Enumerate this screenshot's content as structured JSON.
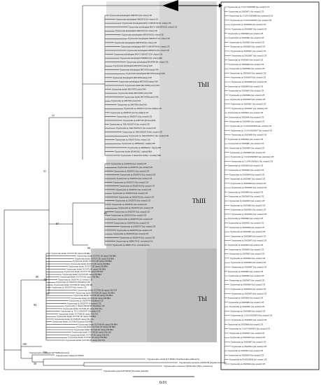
{
  "clades": {
    "thii": "ThII",
    "thiii": "ThIII",
    "thi": "ThI"
  },
  "support_values": [
    "77",
    "51",
    "67",
    "65",
    "99",
    "90",
    "84",
    "100",
    "100",
    "50",
    "94"
  ],
  "outgroup_leaves": [
    "Trypanosoma cf. rangeli KF766864 (Lizard)",
    "Trypanosoma ralphi AF178091",
    "Trypanosoma avium KT728402 (Xanthostomus silhouetti)",
    "Trypanosoma terrestris AJ009158 (Tapirus terrestris)",
    "Trypanosoma constrictor MN412421 (Boa constrictor)",
    "Trypanosoma grayi KF546526 (Glossina palpalis)"
  ],
  "expanded_leaves": [
    "Trypanosoma sp. CS1157 OM256663 (An. sexauri) CZE",
    "Trypanosoma sp. OM256671 (An. sexauri) CZE",
    "Trypanosoma sp. CS1195 OM256686 (An. pyrrhonea) CZE",
    "Trypanosoma sp. CS1203 OM256675 (An. sexauri) CZE",
    "Trypanosoma sp. OM256626 (An. sexauri) CZE",
    "Trypanosoma sp. OM256665 (An. sexauri) CZE",
    "Trypanosoma sp. OM256640 (An. sexauri) CZE",
    "Trypanosoma sp. OM256691 (An. sexauri) CZE",
    "Trypanosoma sp. OM256653 (An. sexauri) CZE",
    "Trypanosoma sp. OM256620 (An. sexauri) CZE",
    "Trypanosoma sp. OM256651 (An. sexauri) CZE",
    "Trypanosoma sp. OM256637 (An. sexauri) CZE",
    "Trypanosoma sp. OM256634 (An. sexauri) CZE",
    "Trypanosoma sp. OM256649 (An. sexauri) CZE",
    "Trypanosoma sp. OM256662 (An. sexauri) CZE",
    "Trypanosoma sp. OM256628 (An. annulata) CZE",
    "Trypanosoma sp. OM256678 (An. sexauri) CZE",
    "Trypanosoma sp. OM256669 (An. sexauri) CZE",
    "Trypanosoma sp. OM256648 (An. sexauri) CZE",
    "Trypanosoma sp. OM256633 (An. sexauri) CZE",
    "Trypanosoma sp. OM256664 (An. sexauri) CZE",
    "Trypanosoma sp. OM256639 (An. sexauri) CZE",
    "Trypanosoma sp. OM256627 (An. sexauri) CZE",
    "Trypanosoma sp. OM256657 (An. annulata) CZE",
    "Trypanosoma sp. OM256621 (An. sexauri) CZE",
    "Trypanosoma sp. OM256643 (An. sexauri) CZE",
    "Trypanosoma sp. OM256685 (An. sexauri) CZE",
    "Trypanosoma sp. CS1149 OM256618 (An. sexauri) CZE",
    "Trypanosoma sp. CS1159 OM256617 (An. sexauri) CZE",
    "Trypanosoma sp. OM256684 (An. sexauri) CZE",
    "Trypanosoma sp. OM256622 (An. sexauri) CZE",
    "Trypanosoma sp. OM256661 (An. sexauri) CZE",
    "Trypanosoma sp. OM256642 (An. sexauri) CZE",
    "Trypanosoma sp. OM256656 (An. sexauri) CZE",
    "Trypanosoma sp. CS1148 OM256613 (An. punctatus) CZE",
    "Trypanosoma sp. CS1149 OM256612 (An. sexauri) CZE",
    "Trypanosoma sp. OM256629 (An. sexauri) CZE",
    "Trypanosoma sp. OM256644 (An. sexauri) CZE",
    "Trypanosoma sp. OM256638 (An. sexauri) CZE",
    "Trypanosoma sp. OM256667 (An. sexauri) CZE",
    "Trypanosoma sp. OM256690 (An. sexauri) CZE",
    "Trypanosoma sp. OM256635 (An. sexauri) CZE",
    "Trypanosoma sp. OM256668 (An. sexauri) CZE",
    "Trypanosoma sp. OM256659 (An. sexauri) CZE",
    "Trypanosoma sp. OM256670 (An. sexauri) CZE",
    "Trypanosoma sp. OM256680 (An. sexauri) CZE",
    "Trypanosoma sp. OM256632 (An. sexauri) CZE",
    "Trypanosoma sp. OM256654 (An. sexauri) CZE",
    "Trypanosoma sp. OM256660 (An. sexauri) CZE",
    "Trypanosoma sp. OM256631 (An. sexauri) CZE",
    "Trypanosoma sp. OM256646 (An. sexauri) CZE",
    "Trypanosoma sp. OM256681 (An. sexauri) CZE",
    "Trypanosoma sp. OM256689 (An. sexauri) CZE",
    "Trypanosoma sp. OM256673 (An. sexauri) CZE",
    "Trypanosoma sp. OM256658 (An. sexauri) CZE",
    "Trypanosoma sp. OM256645 (An. sexauri) CZE",
    "Trypanosoma sp. OM256652 (An. sexauri) CZE",
    "Trypanosoma sp. OM256624 (An. sexauri) CZE",
    "Trypanosoma sp. OM256650 (An. sexauri) CZE",
    "Trypanosoma sp. OM256647 (An. sexauri) CZE",
    "Trypanosoma sp. OM256683 (An. sexauri) CZE",
    "Trypanosoma sp. OM256623 (An. sexauri) CZE",
    "Trypanosoma sp. OM256655 (An. sexauri) CZE",
    "Trypanosoma sp. OM256630 (An. sexauri) CZE",
    "Trypanosoma sp. OM256676 (An. sexauri) CZE",
    "Trypanosoma sp. OM256674 (An. sexauri) CZE",
    "Trypanosoma sp. OM256636 (An. sexauri) CZE",
    "Trypanosoma sp. OM256682 (An. sexauri) CZE",
    "Trypanosoma sp. OM256641 (An. sexauri) CZE",
    "Trypanosoma sp. OM256688 (An. sexauri) CZE",
    "Trypanosoma sp. CS1201 OM256679 (An. sexauri) CZE",
    "Trypanosoma sp. OM256625 (An. sexauri) CZE",
    "Trypanosoma sp. OM256666 (An. sexauri) CZE",
    "Trypanosoma sp. CS1147 OM256672 (An. sexauri) CZE",
    "Trypanosoma sp. OM256677 (An. sexauri) CZE",
    "Trypanosoma sp. OM256619 (An. sexauri) CZE",
    "Trypanosoma sp. OM256687 (An. sexauri) CZE",
    "Trypanosoma sp. OM256614 (An. sexauri) CZE",
    "Trypanosoma sp. OM256615 (An. sexauri) CZE",
    "Trypanosoma sp. OM256616 (An. sexauri) CZE",
    "Trypanosoma sp. D8 OM256636 (Ae. vexans) CZE",
    "Trypanosoma sp. OM256624 (An. sexauri) CZE"
  ],
  "thii_leaves": [
    "Trypanosoma melophagium OM256701 (M. ovinus) CZE",
    "Trypanosoma melophagium OM256702 (M. ovinus) CZE",
    "Trypanosoma melophagium MOV13 OM256703 (M. ovinus) CZE",
    "Trypanosoma melophagium MOV11 OM256704 (M. ovinus) CZE",
    "Trypanosoma melophagium OM256705 (M. ovinus) CZE",
    "Trypanosoma melophagium OM256706 (M. ovinus) CZE",
    "Trypanosoma melophagium OM256707 (M. ovinus) CZE",
    "Trypanosoma melophagium OM256708 (M. ovinus) CZE",
    "Trypanosoma melophagium MOV14 OM256709 (M. ovinus) CZE",
    "Trypanosoma melophagium OM256710 (M. ovinus) CZE",
    "Trypanosoma melophagium MOV15 OM256711 (M. ovinus) CZE",
    "Trypanosoma melophagium FN666010 (M. ovinus) GBR",
    "Trypanosoma melophagium MF187960 (M. ovinus) CZE",
    "Trypanosoma melophagium MK720581 (sheep) SWE",
    "Trypanosoma melophagium MK720582 (sheep) SWE",
    "Trypanosoma melophagium MK720583 (sheep) SWE",
    "Trypanosoma melophagium MK720584 (sheep) SWE",
    "Trypanosoma melophagium MK720585 (sheep) SWE",
    "Trypanosoma theileri MK720586 (cattle) SWE",
    "Trypanosoma theileri MK720587 (cattle) SWE",
    "Trypanosoma theileri MK720588 (cattle) SWE",
    "Trypanosoma theileri MK720589 (cattle) SWE",
    "Trypanosoma sp. MF187961 (deer) POL",
    "Trypanosoma sp. MF187962 (deer) POL",
    "Trypanosoma sp. OM256712 (Cervus elaphus) CZE",
    "Trypanosoma sp. MN395733 (Cervus elaphus) CZE",
    "Trypanosoma sp. OM256713 (An. sexauri) CZE",
    "Trypanosoma sp. KM073235 (B. bison) POL",
    "Trypanosoma sp. TAR1 OM256714 (An. sexauri) CZE",
    "Trypanosoma sp. TAR2 OM256715 (An. sexauri) CZE",
    "Trypanosoma sp. TAR3 OM256716 (An. sexauri) CZE",
    "Trypanosoma sp. TAR4 OM256717 (An. sexauri) CZE",
    "Trypanosoma sp. OM256718 (Ae. vexans) CZE",
    "Trypanosoma sp. AB569248 (C. elaphus) JPN",
    "Trypanosoma sp. AB569249 (C. nippon) JPN",
    "Trypanosoma theileri KF546528 (C. elaphus) BRA",
    "Trypanosoma cf. theileri JX178169 (C. tarandus) NOR"
  ],
  "thiii_leaves": [
    "Trypanosoma sp. OM256720 (An. sexauri) CZE",
    "Trypanosoma sp. OM256721 (An. sexauri) CZE",
    "Trypanosoma sp. OM256722 (An. sexauri) CZE",
    "Trypanosoma sp. OM256723 (An. sexauri) CZE",
    "Trypanosoma sp. OM256724 (An. sexauri) CZE",
    "Trypanosoma sp. OM256725 (An. sexauri) CZE",
    "Trypanosoma sp. OM256726 (An. sexauri) CZE",
    "Trypanosoma sp. OM256727 (An. sexauri) CZE",
    "Trypanosoma sp. OM256728 (An. sexauri) CZE",
    "Trypanosoma sp. OM256729 (An. sexauri) CZE",
    "Trypanosoma sp. OM256730 (An. sexauri) CZE",
    "Trypanosoma sp. OM256731 (An. sexauri) CZE",
    "Trypanosoma sp. OM256732 (An. sexauri) CZE",
    "Trypanosoma sp. OM256733 (An. sexauri) CZE",
    "Trypanosoma sp. OM256734 (An. sexauri) CZE",
    "Trypanosoma sp. OM256735 (An. sexauri) CZE",
    "Trypanosoma sp. OM256736 (An. sexauri) CZE",
    "Trypanosoma sp. OM256737 (An. sexauri) CZE",
    "Trypanosoma sp. OM256738 (An. sexauri) CZE",
    "Trypanosoma sp. OM256739 (An. sexauri) CZE",
    "Trypanosoma sp. OM256740 (An. sexauri) CZE",
    "Trypanosoma sp. MH341754 (C. sonorensis) USA",
    "Trypanosoma sp. MH341755 (C. sonorensis) USA"
  ],
  "thi_leaves": [
    "Trypanosoma theileri JX178170 (B. taurus) TthI BRA",
    "Trypanosoma theileri JX178171 (B. taurus) TthI BRA",
    "Trypanosoma theileri JX178172 (B. taurus) TthI BRA",
    "Trypanosoma theileri JX178173 (B. taurus) TthI BRA",
    "Trypanosoma theileri JX178174 (B. taurus) TthI BRA",
    "Trypanosoma theileri JX178175 (B. taurus) TthI BRA",
    "Trypanosoma theileri JX178176 (B. taurus) TthI BRA",
    "Trypanosoma theileri JX178177 (B. taurus) TthI POL",
    "Trypanosoma theileri JX178178 (B. taurus) TthI BRA",
    "Trypanosoma theileri JX178179 (B. taurus) TthI BRA",
    "Trypanosoma sp. OM256741 (T. bovinus) CZE",
    "Trypanosoma sp. OM256742 (Tabanidae) CZE",
    "Trypanosoma theileri JX178180 (B. taurus) TthI JPN",
    "Trypanosoma sp. OM256743 (Ae. vexans) CZE",
    "Trypanosoma theileri JX178181 (B. taurus) TthI USA",
    "Trypanosoma theileri JX178182 (B. taurus) TthI BRA",
    "Trypanosoma theileri JX178183 (B. taurus) TthI BRA",
    "Trypanosoma theileri JX178184 (B. taurus) TthI BRA",
    "Trypanosoma sp. OM256744 (Tabanidae) CZE",
    "Trypanosoma sp. OM256745 (Tabanidae) CZE",
    "Trypanosoma cf. theileri OM256746 (Tabanidae) CZE",
    "Trypanosoma theileri JX178185 (B. taurus) TthI USA",
    "Trypanosoma sp. TTL13 OM256747 (Tabanidae) CZE",
    "Trypanosoma theileri JX178186 (B. taurus) TthI USA",
    "Trypanosoma theileri JX178187 (B. taurus) TthI BRA",
    "Trypanosoma theileri JX178188 (B. taurus) TthI USA",
    "Trypanosoma theileri JX178189 (Tabanidae) TthI BRA",
    "Trypanosoma theileri JX178190 (B. taurus) TthI BRA",
    "Trypanosoma theileri JX178191 (B. taurus) TthI BRA",
    "Trypanosoma theileri JX178192 (B. taurus) TthI BRA",
    "Trypanosoma theileri JX178193 (B. taurus) TthI USA",
    "Trypanosoma theileri JX178194 (B. taurus) TthI USA",
    "Trypanosoma theileri JX178195 (B. taurus) TthI BRA",
    "Trypanosoma theileri JX178196 (B. taurus) TthI USA"
  ],
  "scale_label": "0.01"
}
